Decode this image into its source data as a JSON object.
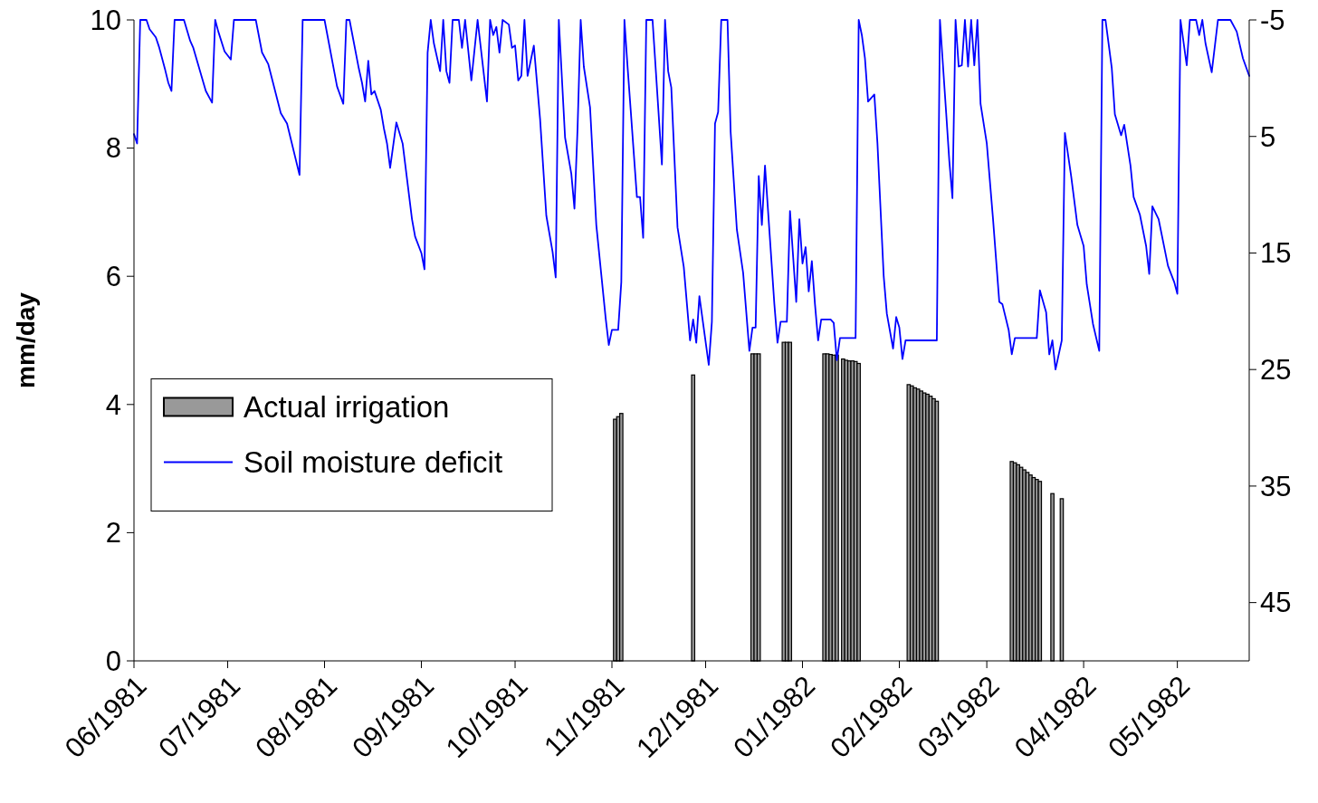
{
  "chart_data": {
    "type": "bar",
    "ylabel": "mm/day",
    "ylim": [
      0,
      10
    ],
    "yticks": [
      0,
      2,
      4,
      6,
      8,
      10
    ],
    "y2lim": [
      50,
      -5
    ],
    "y2ticks": [
      -5,
      5,
      15,
      25,
      35,
      45
    ],
    "xlim": [
      "1981-06-01",
      "1982-05-24"
    ],
    "xticks": [
      {
        "value": "1981-06-01",
        "label": "06/1981"
      },
      {
        "value": "1981-07-01",
        "label": "07/1981"
      },
      {
        "value": "1981-08-01",
        "label": "08/1981"
      },
      {
        "value": "1981-09-01",
        "label": "09/1981"
      },
      {
        "value": "1981-10-01",
        "label": "10/1981"
      },
      {
        "value": "1981-11-01",
        "label": "11/1981"
      },
      {
        "value": "1981-12-01",
        "label": "12/1981"
      },
      {
        "value": "1982-01-01",
        "label": "01/1982"
      },
      {
        "value": "1982-02-01",
        "label": "02/1982"
      },
      {
        "value": "1982-03-01",
        "label": "03/1982"
      },
      {
        "value": "1982-04-01",
        "label": "04/1982"
      },
      {
        "value": "1982-05-01",
        "label": "05/1982"
      }
    ],
    "legend": "left",
    "grid": false,
    "series": [
      {
        "name": "Actual irrigation",
        "color": "#999999",
        "x": [
          "1981-11-02",
          "1981-11-03",
          "1981-11-04",
          "1981-11-27",
          "1981-12-16",
          "1981-12-17",
          "1981-12-18",
          "1981-12-26",
          "1981-12-27",
          "1981-12-28",
          "1982-01-08",
          "1982-01-09",
          "1982-01-10",
          "1982-01-11",
          "1982-01-12",
          "1982-01-14",
          "1982-01-15",
          "1982-01-16",
          "1982-01-17",
          "1982-01-18",
          "1982-01-19",
          "1982-02-04",
          "1982-02-05",
          "1982-02-06",
          "1982-02-07",
          "1982-02-08",
          "1982-02-09",
          "1982-02-10",
          "1982-02-11",
          "1982-02-12",
          "1982-02-13",
          "1982-03-09",
          "1982-03-10",
          "1982-03-11",
          "1982-03-12",
          "1982-03-13",
          "1982-03-14",
          "1982-03-15",
          "1982-03-16",
          "1982-03-17",
          "1982-03-18",
          "1982-03-22",
          "1982-03-25"
        ],
        "values": [
          3.77,
          3.81,
          3.86,
          4.46,
          4.79,
          4.79,
          4.79,
          4.97,
          4.97,
          4.97,
          4.79,
          4.79,
          4.78,
          4.77,
          4.77,
          4.71,
          4.69,
          4.68,
          4.68,
          4.67,
          4.64,
          4.31,
          4.29,
          4.26,
          4.24,
          4.21,
          4.18,
          4.16,
          4.13,
          4.09,
          4.05,
          3.11,
          3.09,
          3.06,
          3.02,
          2.98,
          2.94,
          2.9,
          2.86,
          2.83,
          2.8,
          2.61,
          2.53
        ]
      },
      {
        "name": "Soil moisture deficit",
        "type": "line",
        "axis": "y2",
        "color": "#0000ff",
        "x": [
          "1981-06-01",
          "1981-06-02",
          "1981-06-03",
          "1981-06-05",
          "1981-06-06",
          "1981-06-08",
          "1981-06-09",
          "1981-06-11",
          "1981-06-12",
          "1981-06-13",
          "1981-06-14",
          "1981-06-17",
          "1981-06-19",
          "1981-06-20",
          "1981-06-24",
          "1981-06-26",
          "1981-06-27",
          "1981-06-28",
          "1981-06-30",
          "1981-07-02",
          "1981-07-03",
          "1981-07-10",
          "1981-07-12",
          "1981-07-14",
          "1981-07-18",
          "1981-07-20",
          "1981-07-24",
          "1981-07-25",
          "1981-08-01",
          "1981-08-05",
          "1981-08-07",
          "1981-08-08",
          "1981-08-09",
          "1981-08-12",
          "1981-08-13",
          "1981-08-14",
          "1981-08-15",
          "1981-08-16",
          "1981-08-17",
          "1981-08-19",
          "1981-08-20",
          "1981-08-21",
          "1981-08-22",
          "1981-08-24",
          "1981-08-26",
          "1981-08-29",
          "1981-08-30",
          "1981-09-01",
          "1981-09-02",
          "1981-09-03",
          "1981-09-04",
          "1981-09-05",
          "1981-09-07",
          "1981-09-08",
          "1981-09-09",
          "1981-09-10",
          "1981-09-11",
          "1981-09-13",
          "1981-09-14",
          "1981-09-15",
          "1981-09-17",
          "1981-09-19",
          "1981-09-22",
          "1981-09-23",
          "1981-09-24",
          "1981-09-25",
          "1981-09-26",
          "1981-09-27",
          "1981-09-29",
          "1981-09-30",
          "1981-10-01",
          "1981-10-02",
          "1981-10-03",
          "1981-10-04",
          "1981-10-05",
          "1981-10-07",
          "1981-10-09",
          "1981-10-11",
          "1981-10-13",
          "1981-10-14",
          "1981-10-15",
          "1981-10-17",
          "1981-10-19",
          "1981-10-20",
          "1981-10-21",
          "1981-10-22",
          "1981-10-23",
          "1981-10-25",
          "1981-10-27",
          "1981-10-30",
          "1981-10-31",
          "1981-11-01",
          "1981-11-03",
          "1981-11-04",
          "1981-11-05",
          "1981-11-06",
          "1981-11-07",
          "1981-11-09",
          "1981-11-10",
          "1981-11-11",
          "1981-11-12",
          "1981-11-14",
          "1981-11-17",
          "1981-11-18",
          "1981-11-19",
          "1981-11-20",
          "1981-11-22",
          "1981-11-24",
          "1981-11-26",
          "1981-11-27",
          "1981-11-28",
          "1981-11-29",
          "1981-12-02",
          "1981-12-03",
          "1981-12-04",
          "1981-12-05",
          "1981-12-06",
          "1981-12-08",
          "1981-12-09",
          "1981-12-11",
          "1981-12-13",
          "1981-12-15",
          "1981-12-16",
          "1981-12-17",
          "1981-12-18",
          "1981-12-19",
          "1981-12-20",
          "1981-12-23",
          "1981-12-24",
          "1981-12-25",
          "1981-12-27",
          "1981-12-28",
          "1981-12-30",
          "1981-12-31",
          "1982-01-01",
          "1982-01-02",
          "1982-01-03",
          "1982-01-04",
          "1982-01-05",
          "1982-01-06",
          "1982-01-07",
          "1982-01-10",
          "1982-01-11",
          "1982-01-12",
          "1982-01-13",
          "1982-01-18",
          "1982-01-19",
          "1982-01-20",
          "1982-01-21",
          "1982-01-22",
          "1982-01-24",
          "1982-01-25",
          "1982-01-27",
          "1982-01-28",
          "1982-01-30",
          "1982-01-31",
          "1982-02-01",
          "1982-02-02",
          "1982-02-03",
          "1982-02-13",
          "1982-02-14",
          "1982-02-16",
          "1982-02-17",
          "1982-02-18",
          "1982-02-19",
          "1982-02-20",
          "1982-02-21",
          "1982-02-22",
          "1982-02-23",
          "1982-02-24",
          "1982-02-25",
          "1982-02-26",
          "1982-02-27",
          "1982-03-01",
          "1982-03-03",
          "1982-03-05",
          "1982-03-06",
          "1982-03-08",
          "1982-03-09",
          "1982-03-10",
          "1982-03-17",
          "1982-03-18",
          "1982-03-20",
          "1982-03-21",
          "1982-03-22",
          "1982-03-23",
          "1982-03-25",
          "1982-03-26",
          "1982-03-28",
          "1982-03-30",
          "1982-04-01",
          "1982-04-02",
          "1982-04-04",
          "1982-04-06",
          "1982-04-07",
          "1982-04-08",
          "1982-04-10",
          "1982-04-11",
          "1982-04-13",
          "1982-04-14",
          "1982-04-16",
          "1982-04-17",
          "1982-04-19",
          "1982-04-21",
          "1982-04-22",
          "1982-04-23",
          "1982-04-25",
          "1982-04-28",
          "1982-04-30",
          "1982-05-01",
          "1982-05-02",
          "1982-05-04",
          "1982-05-05",
          "1982-05-07",
          "1982-05-08",
          "1982-05-09",
          "1982-05-10",
          "1982-05-12",
          "1982-05-14",
          "1982-05-18",
          "1982-05-20",
          "1982-05-22",
          "1982-05-24"
        ],
        "values": [
          4.8,
          5.6,
          -5,
          -5,
          -4.2,
          -3.5,
          -2.7,
          -0.7,
          0.4,
          1.1,
          -5,
          -5,
          -3.2,
          -2.6,
          1.1,
          2.1,
          -5,
          -4.0,
          -2.3,
          -1.6,
          -5,
          -5,
          -2.2,
          -1.2,
          3.0,
          3.9,
          8.3,
          -5,
          -5,
          0.7,
          2.2,
          -5,
          -5,
          -0.8,
          0.4,
          2.0,
          -1.5,
          1.4,
          1.1,
          2.7,
          4.3,
          5.6,
          7.7,
          3.8,
          5.6,
          12.1,
          13.6,
          15.0,
          16.4,
          -2.2,
          -5,
          -3.0,
          -0.6,
          -5,
          -0.6,
          0.4,
          -5,
          -5,
          -2.6,
          -5,
          0.2,
          -5,
          2.0,
          -5,
          -3.7,
          -4.4,
          -2.2,
          -5,
          -4.6,
          -2.6,
          -2.8,
          0.2,
          -0.2,
          -5,
          -0.2,
          -2.8,
          3.5,
          11.8,
          14.9,
          17.1,
          -5,
          5.1,
          8.2,
          11.2,
          4.3,
          -5,
          -1.0,
          2.5,
          12.6,
          20.6,
          22.9,
          21.6,
          21.6,
          17.5,
          -5,
          -1.0,
          2.7,
          10.2,
          10.2,
          13.7,
          -5,
          -5,
          7.4,
          -5,
          -0.6,
          0.8,
          12.8,
          16.2,
          22.5,
          20.7,
          22.7,
          18.7,
          24.6,
          20.9,
          3.9,
          2.9,
          -5,
          -5,
          4.6,
          13.0,
          16.7,
          23.4,
          21.4,
          21.4,
          8.4,
          12.6,
          7.5,
          19.4,
          22.7,
          20.9,
          20.9,
          11.4,
          19.2,
          12.1,
          15.9,
          14.5,
          18.3,
          15.7,
          19.4,
          22.5,
          20.7,
          20.7,
          21.0,
          24.2,
          22.3,
          22.3,
          -5,
          -3.7,
          -1.7,
          2.0,
          1.4,
          5.6,
          17.0,
          20.2,
          23.2,
          20.5,
          21.4,
          24.1,
          22.5,
          22.5,
          -5,
          3.0,
          7.1,
          10.3,
          -5,
          -1.0,
          -1.1,
          -5,
          -1.0,
          -5,
          -1.1,
          -5,
          2.2,
          5.6,
          12.1,
          19.2,
          19.4,
          21.6,
          23.7,
          22.3,
          22.3,
          18.2,
          20.1,
          23.7,
          22.5,
          25.0,
          22.5,
          4.7,
          8.4,
          12.6,
          14.4,
          17.7,
          21.1,
          23.4,
          -5,
          -5,
          -0.9,
          3.1,
          4.9,
          4.0,
          7.5,
          10.2,
          11.7,
          14.4,
          16.8,
          11.0,
          12.1,
          16.1,
          17.5,
          18.5,
          -5,
          -1.1,
          -5,
          -5,
          -3.7,
          -5,
          -3.0,
          -0.5,
          -5,
          -5,
          -4.0,
          -1.7,
          -0.2
        ]
      }
    ]
  }
}
